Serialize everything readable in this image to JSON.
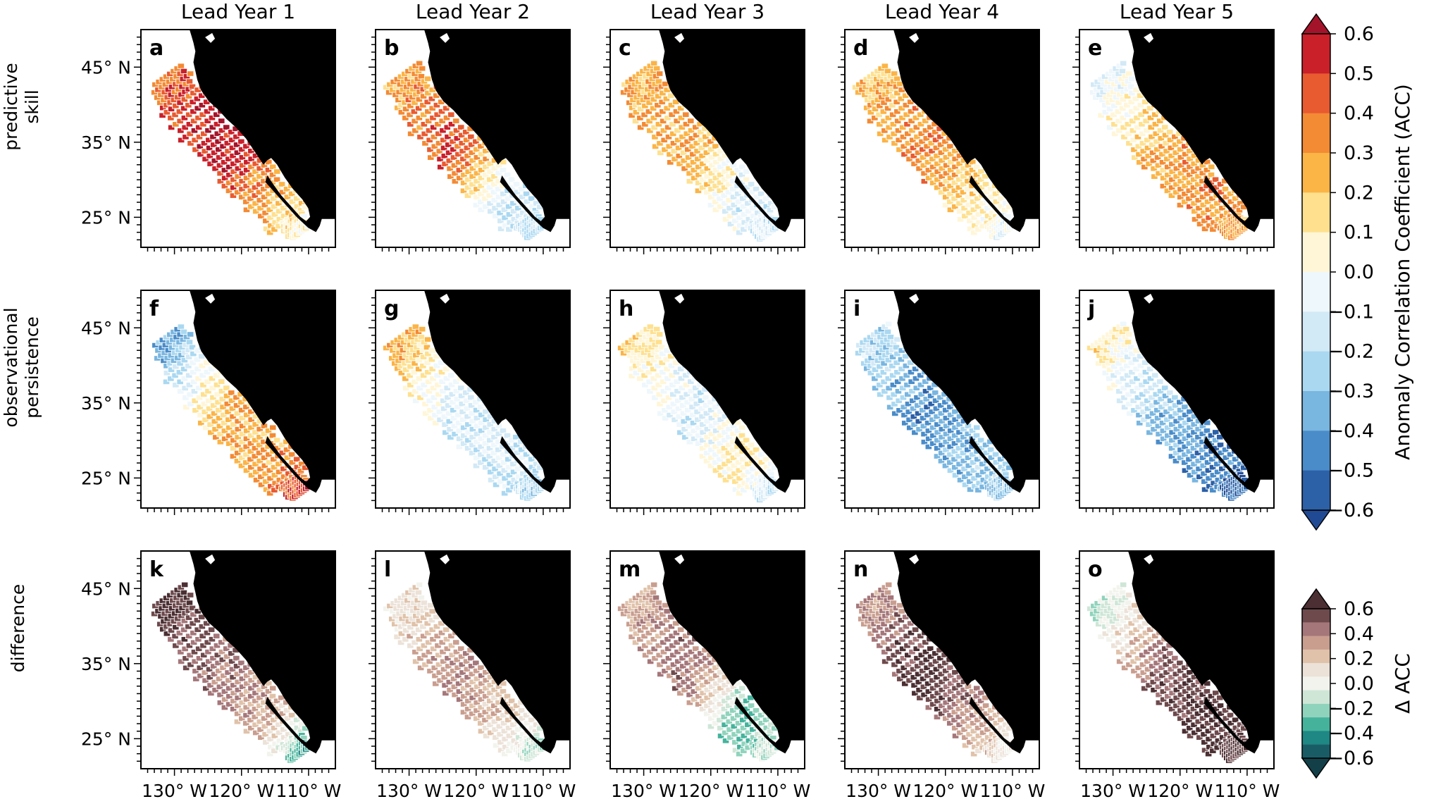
{
  "chart_data": {
    "type": "heatmap",
    "layout": "small-multiples grid, 3 rows x 5 columns, maps of the California Current region",
    "column_titles": [
      "Lead Year 1",
      "Lead Year 2",
      "Lead Year 3",
      "Lead Year 4",
      "Lead Year 5"
    ],
    "row_titles": [
      [
        "predictive",
        "skill"
      ],
      [
        "observational",
        "persistence"
      ],
      [
        "difference"
      ]
    ],
    "panel_letters": [
      "a",
      "b",
      "c",
      "d",
      "e",
      "f",
      "g",
      "h",
      "i",
      "j",
      "k",
      "l",
      "m",
      "n",
      "o"
    ],
    "x_tick_labels": [
      "130° W",
      "120° W",
      "110° W"
    ],
    "y_tick_labels": [
      "45° N",
      "35° N",
      "25° N"
    ],
    "x_ticks_deg": [
      -130,
      -120,
      -110
    ],
    "y_ticks_deg": [
      45,
      35,
      25
    ],
    "lon_range": [
      -135,
      -106
    ],
    "lat_range": [
      21,
      50
    ],
    "colorbars": [
      {
        "label": "Anomaly Correlation Coefficient (ACC)",
        "rows": [
          0,
          1
        ],
        "tick_labels": [
          "0.6",
          "0.5",
          "0.4",
          "0.3",
          "0.2",
          "0.1",
          "0.0",
          "−0.1",
          "−0.2",
          "−0.3",
          "−0.4",
          "−0.5",
          "−0.6"
        ],
        "range": [
          -0.6,
          0.6
        ],
        "colors_top_to_bottom": [
          "#c9202a",
          "#e85a30",
          "#f38a34",
          "#fbb446",
          "#fee08f",
          "#fff6d8",
          "#eef7fc",
          "#d2e9f6",
          "#aad8f1",
          "#79b6e0",
          "#4a8cc9",
          "#2c60a7"
        ],
        "extend_colors": {
          "over": "#a3142a",
          "under": "#214a94"
        }
      },
      {
        "label": "Δ ACC",
        "rows": [
          2
        ],
        "tick_labels": [
          "0.6",
          "0.4",
          "0.2",
          "0.0",
          "−0.2",
          "−0.4",
          "−0.6"
        ],
        "range": [
          -0.6,
          0.6
        ],
        "colors_top_to_bottom": [
          "#6e4a4d",
          "#a5777a",
          "#c99e8f",
          "#e0c2aa",
          "#ece2d8",
          "#f3f3ee",
          "#cfe6d7",
          "#90d3bd",
          "#45b39c",
          "#1f8784",
          "#1a5c66"
        ],
        "extend_colors": {
          "over": "#4b2f33",
          "under": "#133f48"
        }
      }
    ],
    "land_color": "#000000",
    "panels": [
      {
        "letter": "a",
        "row": 0,
        "col": 0,
        "mean_acc": {
          "north": 0.42,
          "central": 0.6,
          "south": 0.25,
          "baja": 0.05
        }
      },
      {
        "letter": "b",
        "row": 0,
        "col": 1,
        "mean_acc": {
          "north": 0.28,
          "central": 0.48,
          "south": -0.15,
          "baja": -0.2
        }
      },
      {
        "letter": "c",
        "row": 0,
        "col": 2,
        "mean_acc": {
          "north": 0.25,
          "central": 0.3,
          "south": -0.1,
          "baja": -0.12
        }
      },
      {
        "letter": "d",
        "row": 0,
        "col": 3,
        "mean_acc": {
          "north": 0.22,
          "central": 0.38,
          "south": 0.12,
          "baja": -0.05
        }
      },
      {
        "letter": "e",
        "row": 0,
        "col": 4,
        "mean_acc": {
          "north": -0.08,
          "central": 0.28,
          "south": 0.33,
          "baja": 0.28
        }
      },
      {
        "letter": "f",
        "row": 1,
        "col": 0,
        "mean_acc": {
          "north": -0.38,
          "central": 0.22,
          "south": 0.3,
          "baja": 0.5
        }
      },
      {
        "letter": "g",
        "row": 1,
        "col": 1,
        "mean_acc": {
          "north": 0.25,
          "central": -0.12,
          "south": -0.15,
          "baja": -0.22
        }
      },
      {
        "letter": "h",
        "row": 1,
        "col": 2,
        "mean_acc": {
          "north": 0.15,
          "central": -0.15,
          "south": 0.12,
          "baja": -0.18
        }
      },
      {
        "letter": "i",
        "row": 1,
        "col": 3,
        "mean_acc": {
          "north": -0.2,
          "central": -0.45,
          "south": -0.3,
          "baja": -0.28
        }
      },
      {
        "letter": "j",
        "row": 1,
        "col": 4,
        "mean_acc": {
          "north": 0.1,
          "central": -0.3,
          "south": -0.45,
          "baja": -0.55
        }
      },
      {
        "letter": "k",
        "row": 2,
        "col": 0,
        "mean_acc": {
          "north": 0.62,
          "central": 0.42,
          "south": 0.25,
          "baja": -0.3
        }
      },
      {
        "letter": "l",
        "row": 2,
        "col": 1,
        "mean_acc": {
          "north": 0.1,
          "central": 0.4,
          "south": 0.15,
          "baja": -0.15
        }
      },
      {
        "letter": "m",
        "row": 2,
        "col": 2,
        "mean_acc": {
          "north": 0.3,
          "central": 0.45,
          "south": -0.28,
          "baja": -0.1
        }
      },
      {
        "letter": "n",
        "row": 2,
        "col": 3,
        "mean_acc": {
          "north": 0.35,
          "central": 0.62,
          "south": 0.35,
          "baja": 0.05
        }
      },
      {
        "letter": "o",
        "row": 2,
        "col": 4,
        "mean_acc": {
          "north": -0.1,
          "central": 0.5,
          "south": 0.62,
          "baja": 0.6
        }
      }
    ]
  }
}
